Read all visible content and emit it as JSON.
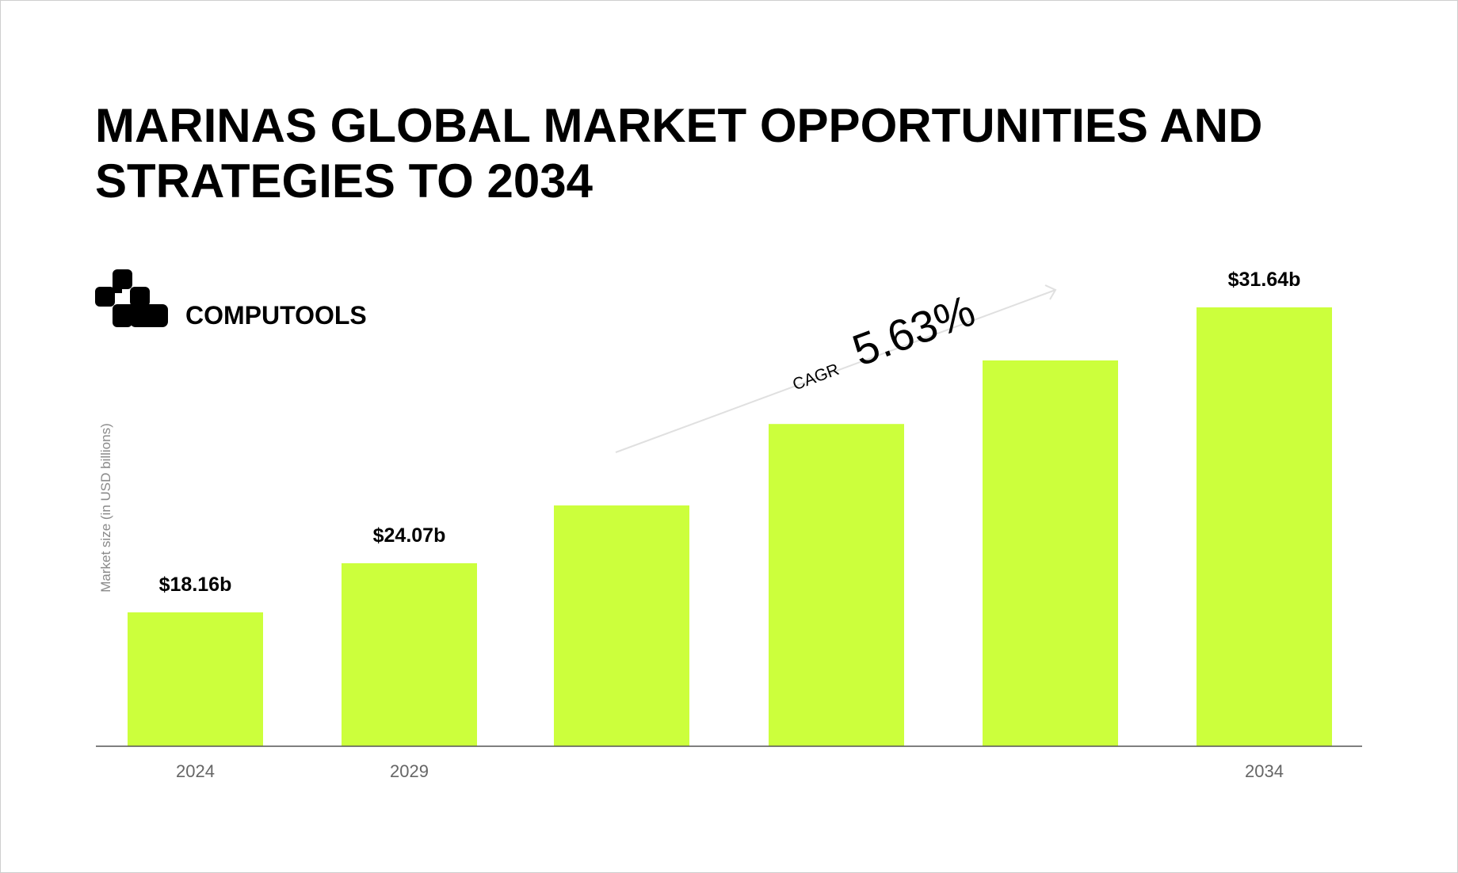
{
  "title": "MARINAS GLOBAL MARKET OPPORTUNITIES AND STRATEGIES TO 2034",
  "brand": {
    "name": "COMPUTOOLS",
    "logo_icon": "computools-logo-icon"
  },
  "cagr": {
    "label": "CAGR",
    "value": "5.63%"
  },
  "colors": {
    "bar": "#CCFF3C",
    "axis": "#555555",
    "arrow": "#E0E0E0",
    "text": "#000000",
    "tick": "#666666"
  },
  "chart_data": {
    "type": "bar",
    "title": "MARINAS GLOBAL MARKET OPPORTUNITIES AND STRATEGIES TO 2034",
    "xlabel": "",
    "ylabel": "Market size (in USD billions)",
    "categories": [
      "2024",
      "2029",
      "",
      "",
      "",
      "2034"
    ],
    "values": [
      18.16,
      24.07,
      25.78,
      28.19,
      30.07,
      31.64
    ],
    "data_labels": [
      "$18.16b",
      "$24.07b",
      "",
      "",
      "",
      "$31.64b"
    ],
    "grid": false,
    "legend": "none"
  }
}
